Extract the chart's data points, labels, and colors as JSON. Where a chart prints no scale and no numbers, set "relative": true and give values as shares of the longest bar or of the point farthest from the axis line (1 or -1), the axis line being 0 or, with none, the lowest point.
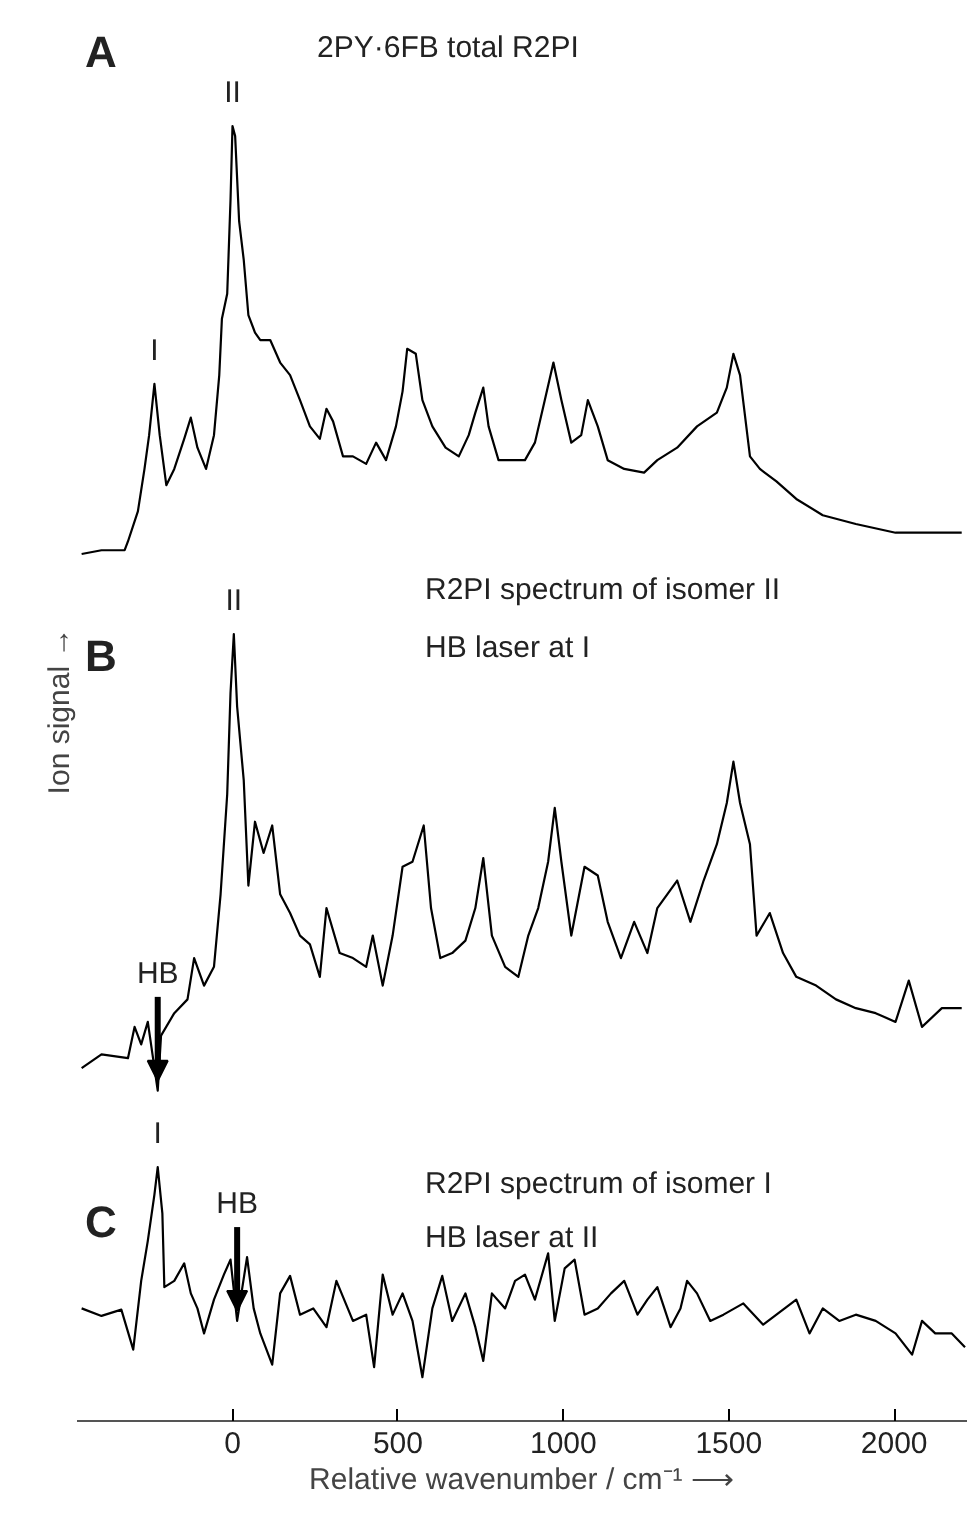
{
  "chart_data": {
    "type": "line",
    "relative": true,
    "xlim": [
      -470,
      2220
    ],
    "xticks": [
      0,
      500,
      1000,
      1500,
      2000
    ],
    "tick_labels": "x",
    "xlabel": "Relative wavenumber / cm⁻¹ ⟶",
    "ylabel": "Ion signal →",
    "series": [
      {
        "color": "#000000",
        "x": [
          -456,
          -396,
          -326,
          -316,
          -286,
          -266,
          -252,
          -236,
          -220,
          -200,
          -176,
          -146,
          -126,
          -106,
          -80,
          -56,
          -40,
          -32,
          -16,
          -6,
          0,
          8,
          20,
          34,
          48,
          68,
          84,
          114,
          144,
          174,
          204,
          234,
          264,
          284,
          304,
          334,
          364,
          404,
          434,
          464,
          494,
          514,
          528,
          554,
          574,
          604,
          644,
          684,
          714,
          734,
          758,
          774,
          804,
          844,
          884,
          914,
          944,
          970,
          994,
          1024,
          1054,
          1074,
          1104,
          1134,
          1184,
          1244,
          1284,
          1344,
          1404,
          1464,
          1494,
          1514,
          1534,
          1564,
          1594,
          1644,
          1704,
          1784,
          1884,
          2004,
          2084,
          2204
        ],
        "values": [
          0.658,
          0.661,
          0.661,
          0.668,
          0.692,
          0.726,
          0.753,
          0.794,
          0.753,
          0.713,
          0.726,
          0.75,
          0.767,
          0.743,
          0.726,
          0.753,
          0.801,
          0.846,
          0.866,
          0.941,
          1.0,
          0.992,
          0.924,
          0.893,
          0.849,
          0.835,
          0.829,
          0.829,
          0.811,
          0.801,
          0.781,
          0.76,
          0.75,
          0.774,
          0.764,
          0.736,
          0.736,
          0.73,
          0.747,
          0.733,
          0.76,
          0.788,
          0.822,
          0.818,
          0.781,
          0.76,
          0.743,
          0.736,
          0.753,
          0.771,
          0.791,
          0.76,
          0.733,
          0.733,
          0.733,
          0.747,
          0.781,
          0.811,
          0.781,
          0.747,
          0.753,
          0.781,
          0.76,
          0.733,
          0.726,
          0.723,
          0.733,
          0.743,
          0.76,
          0.771,
          0.791,
          0.818,
          0.801,
          0.736,
          0.726,
          0.716,
          0.702,
          0.689,
          0.682,
          0.675,
          0.675,
          0.675
        ]
      },
      {
        "color": "#000000",
        "x": [
          -456,
          -396,
          -316,
          -296,
          -276,
          -256,
          -226,
          -216,
          -176,
          -136,
          -116,
          -86,
          -56,
          -36,
          -16,
          -6,
          4,
          14,
          34,
          48,
          68,
          94,
          120,
          144,
          174,
          204,
          234,
          264,
          284,
          324,
          364,
          404,
          424,
          454,
          484,
          514,
          544,
          578,
          600,
          628,
          664,
          704,
          734,
          758,
          784,
          824,
          864,
          894,
          924,
          954,
          974,
          994,
          1024,
          1064,
          1104,
          1134,
          1174,
          1214,
          1254,
          1284,
          1344,
          1384,
          1424,
          1464,
          1494,
          1514,
          1534,
          1564,
          1584,
          1624,
          1664,
          1704,
          1764,
          1824,
          1884,
          1944,
          2004,
          2044,
          2084,
          2144,
          2204
        ],
        "values": [
          0.247,
          0.258,
          0.255,
          0.28,
          0.266,
          0.284,
          0.229,
          0.273,
          0.291,
          0.302,
          0.335,
          0.313,
          0.328,
          0.386,
          0.466,
          0.547,
          0.594,
          0.536,
          0.477,
          0.393,
          0.444,
          0.419,
          0.441,
          0.386,
          0.371,
          0.353,
          0.346,
          0.32,
          0.375,
          0.339,
          0.335,
          0.328,
          0.353,
          0.313,
          0.353,
          0.408,
          0.412,
          0.441,
          0.375,
          0.335,
          0.339,
          0.349,
          0.375,
          0.415,
          0.353,
          0.328,
          0.32,
          0.353,
          0.375,
          0.412,
          0.455,
          0.412,
          0.353,
          0.408,
          0.401,
          0.364,
          0.335,
          0.364,
          0.339,
          0.375,
          0.397,
          0.364,
          0.397,
          0.426,
          0.459,
          0.492,
          0.459,
          0.426,
          0.353,
          0.371,
          0.339,
          0.32,
          0.313,
          0.302,
          0.295,
          0.291,
          0.284,
          0.317,
          0.28,
          0.295,
          0.295
        ]
      },
      {
        "color": "#000000",
        "x": [
          -456,
          -396,
          -336,
          -300,
          -276,
          -256,
          -236,
          -226,
          -212,
          -206,
          -176,
          -146,
          -126,
          -106,
          -86,
          -56,
          -26,
          -6,
          14,
          44,
          64,
          84,
          120,
          144,
          174,
          204,
          244,
          284,
          314,
          364,
          404,
          428,
          454,
          484,
          514,
          544,
          574,
          604,
          634,
          664,
          704,
          734,
          758,
          784,
          824,
          854,
          884,
          914,
          954,
          974,
          1004,
          1034,
          1064,
          1104,
          1144,
          1184,
          1224,
          1254,
          1284,
          1324,
          1354,
          1374,
          1404,
          1444,
          1484,
          1544,
          1604,
          1644,
          1704,
          1744,
          1784,
          1834,
          1884,
          1944,
          2004,
          2054,
          2084,
          2124,
          2174,
          2214
        ],
        "values": [
          0.055,
          0.049,
          0.054,
          0.022,
          0.077,
          0.109,
          0.146,
          0.168,
          0.131,
          0.072,
          0.077,
          0.091,
          0.067,
          0.055,
          0.035,
          0.062,
          0.082,
          0.094,
          0.045,
          0.096,
          0.055,
          0.035,
          0.01,
          0.067,
          0.081,
          0.05,
          0.055,
          0.04,
          0.077,
          0.045,
          0.05,
          0.008,
          0.082,
          0.05,
          0.067,
          0.045,
          0,
          0.055,
          0.081,
          0.045,
          0.067,
          0.04,
          0.013,
          0.067,
          0.055,
          0.077,
          0.082,
          0.062,
          0.099,
          0.045,
          0.087,
          0.094,
          0.05,
          0.055,
          0.067,
          0.077,
          0.05,
          0.062,
          0.072,
          0.04,
          0.055,
          0.077,
          0.067,
          0.045,
          0.05,
          0.059,
          0.042,
          0.05,
          0.062,
          0.035,
          0.055,
          0.045,
          0.05,
          0.045,
          0.035,
          0.018,
          0.045,
          0.035,
          0.035,
          0.024
        ]
      }
    ],
    "annotations": [
      "A",
      "2PY·6FB total R2PI",
      "B",
      "R2PI spectrum of  isomer II",
      "HB laser  at  I",
      "C",
      "R2PI spectrum of  isomer I",
      "HB laser  at II",
      {
        "text": "I",
        "x": -236,
        "y": 0.794
      },
      {
        "text": "II",
        "x": 0,
        "y": 1.0
      },
      {
        "text": "II",
        "x": 4,
        "y": 0.594
      },
      {
        "text": "HB",
        "x": -226,
        "y": 0.229
      },
      {
        "text": "I",
        "x": -226,
        "y": 0.168
      },
      {
        "text": "HB",
        "x": 14,
        "y": 0.045
      }
    ]
  }
}
